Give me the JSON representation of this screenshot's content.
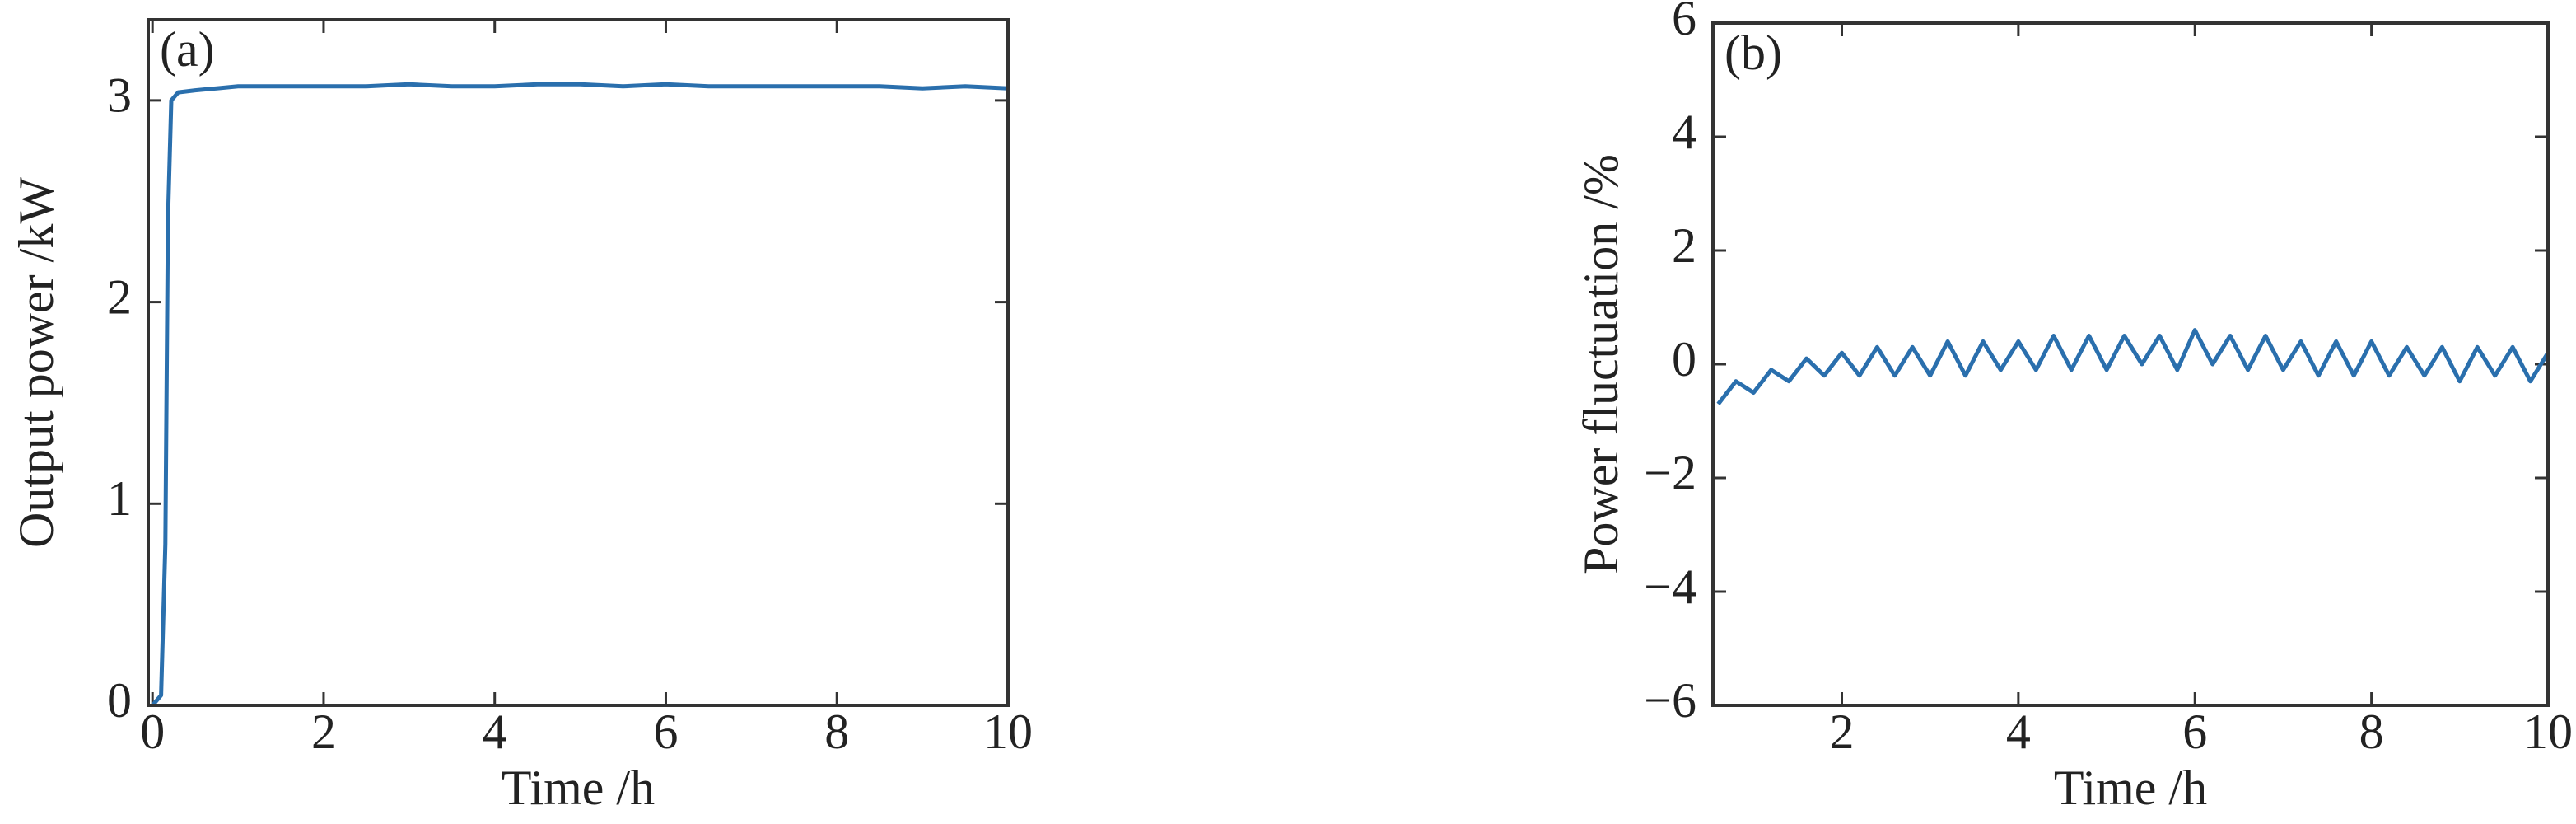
{
  "chart_data": [
    {
      "type": "line",
      "annotation": "(a)",
      "x_label": "Time /h",
      "y_label": "Output power /kW",
      "xlim": [
        -0.05,
        10
      ],
      "ylim": [
        0,
        3.4
      ],
      "xticks": [
        0,
        2,
        4,
        6,
        8,
        10
      ],
      "yticks": [
        0,
        1,
        2,
        3
      ],
      "x": [
        0,
        0.1,
        0.15,
        0.18,
        0.22,
        0.3,
        0.5,
        0.75,
        1,
        1.5,
        2,
        2.5,
        3,
        3.5,
        4,
        4.5,
        5,
        5.5,
        6,
        6.5,
        7,
        7.5,
        8,
        8.5,
        9,
        9.5,
        10
      ],
      "series": [
        {
          "color": "#2a6fad",
          "values": [
            0,
            0.05,
            0.8,
            2.4,
            3.0,
            3.04,
            3.05,
            3.06,
            3.07,
            3.07,
            3.07,
            3.07,
            3.08,
            3.07,
            3.07,
            3.08,
            3.08,
            3.07,
            3.08,
            3.07,
            3.07,
            3.07,
            3.07,
            3.07,
            3.06,
            3.07,
            3.06
          ]
        }
      ]
    },
    {
      "type": "line",
      "annotation": "(b)",
      "x_label": "Time /h",
      "y_label": "Power fluctuation /%",
      "xlim": [
        0.54,
        10
      ],
      "ylim": [
        -6,
        6
      ],
      "xticks": [
        2,
        4,
        6,
        8,
        10
      ],
      "yticks": [
        {
          "value": -6,
          "label": "−6"
        },
        {
          "value": -4,
          "label": "−4"
        },
        {
          "value": -2,
          "label": "−2"
        },
        0,
        2,
        4,
        6
      ],
      "x": [
        0.6,
        0.8,
        1.0,
        1.2,
        1.4,
        1.6,
        1.8,
        2.0,
        2.2,
        2.4,
        2.6,
        2.8,
        3.0,
        3.2,
        3.4,
        3.6,
        3.8,
        4.0,
        4.2,
        4.4,
        4.6,
        4.8,
        5.0,
        5.2,
        5.4,
        5.6,
        5.8,
        6.0,
        6.2,
        6.4,
        6.6,
        6.8,
        7.0,
        7.2,
        7.4,
        7.6,
        7.8,
        8.0,
        8.2,
        8.4,
        8.6,
        8.8,
        9.0,
        9.2,
        9.4,
        9.6,
        9.8,
        10.0
      ],
      "series": [
        {
          "color": "#2a6fad",
          "values": [
            -0.7,
            -0.3,
            -0.5,
            -0.1,
            -0.3,
            0.1,
            -0.2,
            0.2,
            -0.2,
            0.3,
            -0.2,
            0.3,
            -0.2,
            0.4,
            -0.2,
            0.4,
            -0.1,
            0.4,
            -0.1,
            0.5,
            -0.1,
            0.5,
            -0.1,
            0.5,
            0,
            0.5,
            -0.1,
            0.6,
            0,
            0.5,
            -0.1,
            0.5,
            -0.1,
            0.4,
            -0.2,
            0.4,
            -0.2,
            0.4,
            -0.2,
            0.3,
            -0.2,
            0.3,
            -0.3,
            0.3,
            -0.2,
            0.3,
            -0.3,
            0.2
          ]
        }
      ]
    }
  ]
}
